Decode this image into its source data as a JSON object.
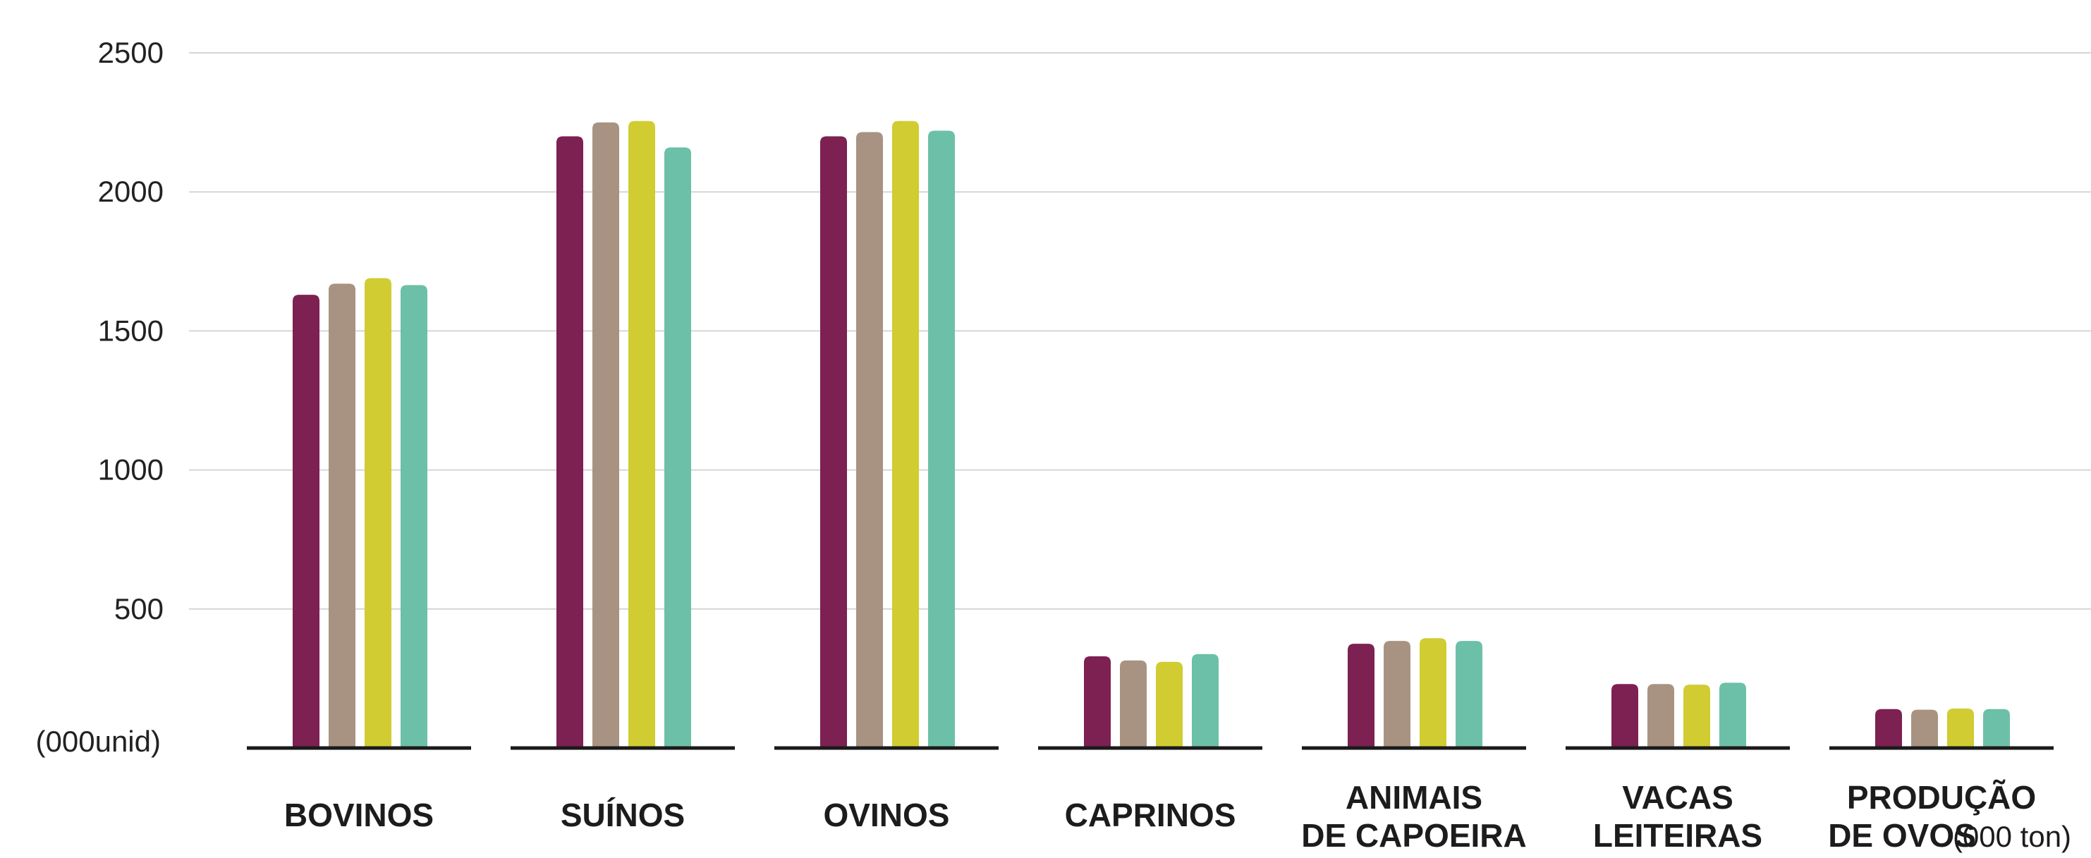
{
  "chart_data": {
    "type": "bar",
    "unit_label": "(000unid)",
    "ylim": [
      0,
      2500
    ],
    "yticks": [
      500,
      1000,
      1500,
      2000,
      2500
    ],
    "grid": true,
    "legend": "none",
    "categories": [
      {
        "lines": [
          "BOVINOS"
        ],
        "unit": ""
      },
      {
        "lines": [
          "SUÍNOS"
        ],
        "unit": ""
      },
      {
        "lines": [
          "OVINOS"
        ],
        "unit": ""
      },
      {
        "lines": [
          "CAPRINOS"
        ],
        "unit": ""
      },
      {
        "lines": [
          "ANIMAIS",
          "DE CAPOEIRA"
        ],
        "unit": ""
      },
      {
        "lines": [
          "VACAS",
          "LEITEIRAS"
        ],
        "unit": ""
      },
      {
        "lines": [
          "PRODUÇÃO",
          "DE OVOS"
        ],
        "unit": "(000 ton)"
      }
    ],
    "series": [
      {
        "color": "#7d2052",
        "values": [
          1630,
          2200,
          2200,
          330,
          375,
          230,
          140
        ]
      },
      {
        "color": "#a89382",
        "values": [
          1670,
          2250,
          2215,
          315,
          385,
          230,
          138
        ]
      },
      {
        "color": "#d0cc32",
        "values": [
          1690,
          2255,
          2255,
          310,
          395,
          228,
          142
        ]
      },
      {
        "color": "#6cc0a7",
        "values": [
          1665,
          2160,
          2220,
          338,
          385,
          235,
          140
        ]
      }
    ]
  }
}
